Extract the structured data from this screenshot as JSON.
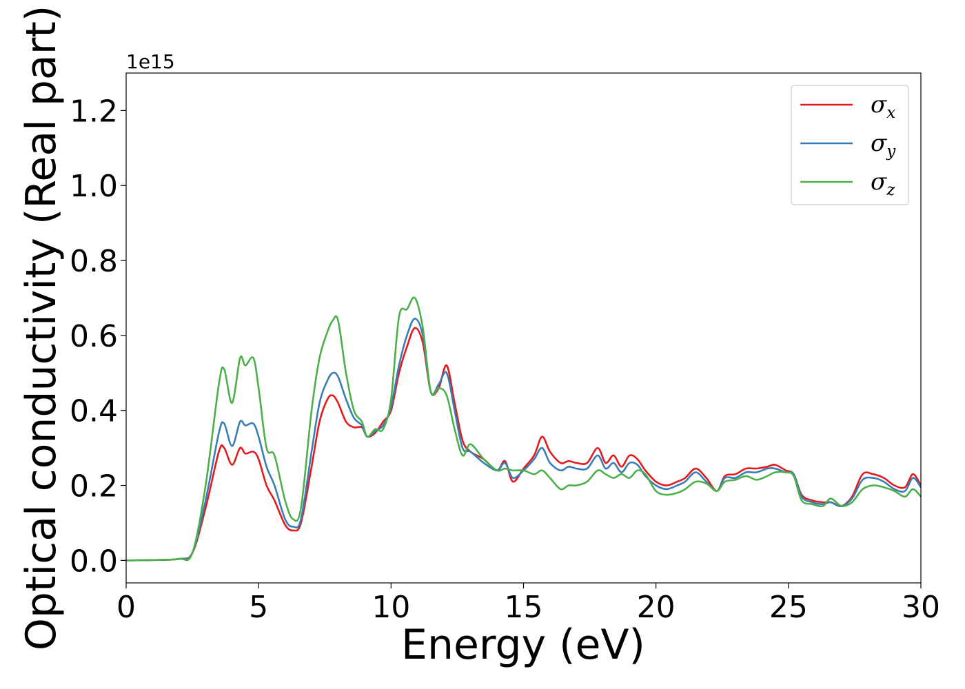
{
  "chart_data": {
    "type": "line",
    "xlabel": "Energy (eV)",
    "ylabel": "Optical conductivity (Real part)",
    "offset_label": "1e15",
    "xlim": [
      0,
      30
    ],
    "ylim": [
      -0.06,
      1.3
    ],
    "xticks": [
      0,
      5,
      10,
      15,
      20,
      25,
      30
    ],
    "yticks": [
      0.0,
      0.2,
      0.4,
      0.6,
      0.8,
      1.0,
      1.2
    ],
    "xtick_labels": [
      "0",
      "5",
      "10",
      "15",
      "20",
      "25",
      "30"
    ],
    "ytick_labels": [
      "0.0",
      "0.2",
      "0.4",
      "0.6",
      "0.8",
      "1.0",
      "1.2"
    ],
    "grid": false,
    "legend_position": "top-right",
    "series": [
      {
        "name": "σx",
        "symbol": "σ",
        "subscript": "x",
        "color": "#e41a1c",
        "x": [
          0,
          1,
          2,
          2.5,
          3,
          3.5,
          3.7,
          4.0,
          4.3,
          4.5,
          4.8,
          5.0,
          5.3,
          5.6,
          6.0,
          6.3,
          6.6,
          7.0,
          7.3,
          7.6,
          7.8,
          8.0,
          8.3,
          8.6,
          8.9,
          9.1,
          9.4,
          9.7,
          10.0,
          10.3,
          10.6,
          10.9,
          11.2,
          11.5,
          11.8,
          12.1,
          12.4,
          12.7,
          13.0,
          13.5,
          14.0,
          14.3,
          14.6,
          15.0,
          15.4,
          15.7,
          16.0,
          16.4,
          16.7,
          17.0,
          17.4,
          17.8,
          18.1,
          18.4,
          18.7,
          19.0,
          19.3,
          19.6,
          20.0,
          20.4,
          20.8,
          21.1,
          21.5,
          21.9,
          22.3,
          22.6,
          23.0,
          23.4,
          23.8,
          24.2,
          24.5,
          24.9,
          25.2,
          25.5,
          25.9,
          26.3,
          26.6,
          27.0,
          27.4,
          27.8,
          28.2,
          28.6,
          29.0,
          29.4,
          29.7,
          30.0
        ],
        "values": [
          0.0,
          0.001,
          0.004,
          0.02,
          0.14,
          0.29,
          0.3,
          0.255,
          0.3,
          0.285,
          0.29,
          0.27,
          0.2,
          0.16,
          0.095,
          0.08,
          0.1,
          0.25,
          0.37,
          0.43,
          0.44,
          0.42,
          0.37,
          0.355,
          0.355,
          0.33,
          0.34,
          0.37,
          0.4,
          0.5,
          0.57,
          0.62,
          0.58,
          0.45,
          0.46,
          0.52,
          0.42,
          0.32,
          0.29,
          0.27,
          0.24,
          0.265,
          0.21,
          0.245,
          0.28,
          0.33,
          0.29,
          0.26,
          0.265,
          0.26,
          0.26,
          0.3,
          0.26,
          0.28,
          0.25,
          0.28,
          0.27,
          0.24,
          0.21,
          0.2,
          0.21,
          0.22,
          0.245,
          0.22,
          0.185,
          0.225,
          0.23,
          0.245,
          0.245,
          0.25,
          0.255,
          0.24,
          0.23,
          0.175,
          0.16,
          0.155,
          0.155,
          0.145,
          0.17,
          0.23,
          0.23,
          0.22,
          0.2,
          0.195,
          0.23,
          0.2
        ]
      },
      {
        "name": "σy",
        "symbol": "σ",
        "subscript": "y",
        "color": "#377eb8",
        "x": [
          0,
          1,
          2,
          2.5,
          3,
          3.5,
          3.7,
          4.0,
          4.3,
          4.5,
          4.8,
          5.0,
          5.3,
          5.6,
          6.0,
          6.3,
          6.6,
          7.0,
          7.3,
          7.6,
          7.8,
          8.0,
          8.3,
          8.6,
          8.9,
          9.1,
          9.4,
          9.7,
          10.0,
          10.3,
          10.6,
          10.9,
          11.2,
          11.5,
          11.8,
          12.1,
          12.4,
          12.7,
          13.0,
          13.5,
          14.0,
          14.3,
          14.6,
          15.0,
          15.4,
          15.7,
          16.0,
          16.4,
          16.7,
          17.0,
          17.4,
          17.8,
          18.1,
          18.4,
          18.7,
          19.0,
          19.3,
          19.6,
          20.0,
          20.4,
          20.8,
          21.1,
          21.5,
          21.9,
          22.3,
          22.6,
          23.0,
          23.4,
          23.8,
          24.2,
          24.5,
          24.9,
          25.2,
          25.5,
          25.9,
          26.3,
          26.6,
          27.0,
          27.4,
          27.8,
          28.2,
          28.6,
          29.0,
          29.4,
          29.7,
          30.0
        ],
        "values": [
          0.0,
          0.001,
          0.004,
          0.02,
          0.16,
          0.34,
          0.365,
          0.305,
          0.37,
          0.36,
          0.365,
          0.33,
          0.25,
          0.2,
          0.11,
          0.09,
          0.11,
          0.29,
          0.42,
          0.48,
          0.5,
          0.49,
          0.43,
          0.38,
          0.36,
          0.33,
          0.345,
          0.36,
          0.41,
          0.52,
          0.6,
          0.645,
          0.6,
          0.45,
          0.47,
          0.5,
          0.4,
          0.3,
          0.29,
          0.26,
          0.24,
          0.26,
          0.22,
          0.24,
          0.27,
          0.3,
          0.26,
          0.24,
          0.25,
          0.245,
          0.245,
          0.28,
          0.245,
          0.26,
          0.235,
          0.26,
          0.255,
          0.225,
          0.2,
          0.19,
          0.2,
          0.21,
          0.235,
          0.21,
          0.185,
          0.22,
          0.22,
          0.235,
          0.235,
          0.245,
          0.245,
          0.235,
          0.23,
          0.17,
          0.155,
          0.15,
          0.155,
          0.145,
          0.165,
          0.215,
          0.22,
          0.21,
          0.19,
          0.185,
          0.22,
          0.195
        ]
      },
      {
        "name": "σz",
        "symbol": "σ",
        "subscript": "z",
        "color": "#4daf4a",
        "x": [
          0,
          1,
          2,
          2.5,
          3,
          3.5,
          3.7,
          4.0,
          4.3,
          4.5,
          4.8,
          5.0,
          5.3,
          5.6,
          6.0,
          6.3,
          6.6,
          7.0,
          7.3,
          7.6,
          7.8,
          8.0,
          8.3,
          8.6,
          8.9,
          9.1,
          9.4,
          9.7,
          10.0,
          10.3,
          10.6,
          10.9,
          11.2,
          11.5,
          11.8,
          12.1,
          12.4,
          12.7,
          13.0,
          13.5,
          14.0,
          14.3,
          14.6,
          15.0,
          15.4,
          15.7,
          16.0,
          16.4,
          16.7,
          17.0,
          17.4,
          17.8,
          18.1,
          18.4,
          18.7,
          19.0,
          19.3,
          19.6,
          20.0,
          20.4,
          20.8,
          21.1,
          21.5,
          21.9,
          22.3,
          22.6,
          23.0,
          23.4,
          23.8,
          24.2,
          24.5,
          24.9,
          25.2,
          25.5,
          25.9,
          26.3,
          26.6,
          27.0,
          27.4,
          27.8,
          28.2,
          28.6,
          29.0,
          29.4,
          29.7,
          30.0
        ],
        "values": [
          0.0,
          0.001,
          0.004,
          0.02,
          0.2,
          0.47,
          0.51,
          0.42,
          0.54,
          0.52,
          0.54,
          0.46,
          0.3,
          0.28,
          0.16,
          0.11,
          0.14,
          0.4,
          0.54,
          0.61,
          0.64,
          0.64,
          0.5,
          0.4,
          0.37,
          0.33,
          0.35,
          0.35,
          0.43,
          0.65,
          0.67,
          0.7,
          0.62,
          0.45,
          0.46,
          0.44,
          0.35,
          0.28,
          0.31,
          0.27,
          0.24,
          0.245,
          0.24,
          0.24,
          0.23,
          0.24,
          0.22,
          0.19,
          0.2,
          0.2,
          0.21,
          0.24,
          0.23,
          0.22,
          0.23,
          0.22,
          0.24,
          0.23,
          0.185,
          0.175,
          0.18,
          0.19,
          0.21,
          0.205,
          0.185,
          0.21,
          0.215,
          0.225,
          0.215,
          0.225,
          0.235,
          0.235,
          0.225,
          0.16,
          0.15,
          0.145,
          0.165,
          0.145,
          0.155,
          0.19,
          0.2,
          0.195,
          0.185,
          0.17,
          0.19,
          0.17
        ]
      }
    ]
  }
}
